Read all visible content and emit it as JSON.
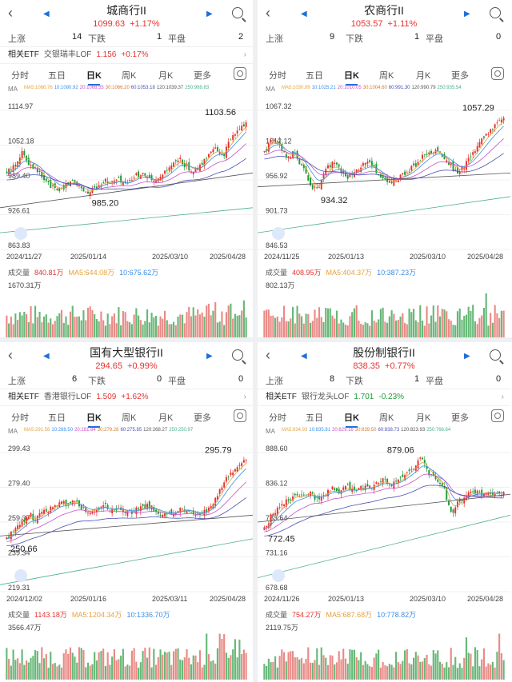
{
  "colors": {
    "up": "#e5332f",
    "down": "#1f9a3a",
    "blue": "#1f6fd8",
    "ma5": "#e6a23c",
    "ma10": "#3c8ee6",
    "ma20": "#c452c4",
    "ma30": "#d77a2c",
    "ma60": "#4a4fb5",
    "ma120": "#555555",
    "ma250": "#4caf88"
  },
  "tabs": [
    "分时",
    "五日",
    "日K",
    "周K",
    "月K",
    "更多"
  ],
  "labels": {
    "up": "上涨",
    "down": "下跌",
    "flat": "平盘",
    "etf": "相关ETF",
    "vol": "成交量",
    "ma": "MA"
  },
  "panels": [
    {
      "title": "城商行II",
      "price": "1099.63",
      "change": "+1.17%",
      "up": "14",
      "down": "1",
      "flat": "2",
      "etf_name": "交银瑞丰LOF",
      "etf_price": "1.156",
      "etf_change": "+0.17%",
      "etf_dir": "up",
      "ma": [
        [
          "MA5:1086.76",
          "ma5"
        ],
        [
          "10:1080.92",
          "ma10"
        ],
        [
          "20:1068.55",
          "ma20"
        ],
        [
          "30:1066.20",
          "ma30"
        ],
        [
          "60:1053.18",
          "ma60"
        ],
        [
          "120:1039.37",
          "ma120"
        ],
        [
          "250:969.83",
          "ma250"
        ]
      ],
      "yticks": [
        "1114.97",
        "1052.18",
        "989.40",
        "926.61",
        "863.83"
      ],
      "high": "1103.56",
      "low": "985.20",
      "dates": [
        "2024/11/27",
        "2025/01/14",
        "2025/03/10",
        "2025/04/28"
      ],
      "vol": "840.81万",
      "vol_ma5": "MA5:644.08万",
      "vol_ma10": "10:675.62万",
      "vol_max": "1670.31万",
      "series": {
        "start": 0.55,
        "path": [
          0.55,
          0.6,
          0.7,
          0.62,
          0.58,
          0.5,
          0.45,
          0.42,
          0.47,
          0.5,
          0.44,
          0.4,
          0.45,
          0.5,
          0.48,
          0.5,
          0.46,
          0.52,
          0.55,
          0.5,
          0.48,
          0.54,
          0.6,
          0.65,
          0.6,
          0.56,
          0.6,
          0.7,
          0.72,
          0.68,
          0.8,
          0.85,
          0.92
        ],
        "ma250": [
          0.12,
          0.3
        ],
        "ma120": [
          0.3,
          0.55
        ]
      }
    },
    {
      "title": "农商行II",
      "price": "1053.57",
      "change": "+1.11%",
      "up": "9",
      "down": "1",
      "flat": "0",
      "etf_name": "",
      "etf_price": "",
      "etf_change": "",
      "etf_dir": "up",
      "ma": [
        [
          "MA5:1030.99",
          "ma5"
        ],
        [
          "10:1025.21",
          "ma10"
        ],
        [
          "20:1010.05",
          "ma20"
        ],
        [
          "30:1004.60",
          "ma30"
        ],
        [
          "60:991.30",
          "ma60"
        ],
        [
          "120:990.79",
          "ma120"
        ],
        [
          "250:935.54",
          "ma250"
        ]
      ],
      "yticks": [
        "1067.32",
        "1012.12",
        "956.92",
        "901.73",
        "846.53"
      ],
      "high": "1057.29",
      "low": "934.32",
      "dates": [
        "2024/11/25",
        "2025/01/13",
        "2025/03/10",
        "2025/04/28"
      ],
      "vol": "408.95万",
      "vol_ma5": "MA5:404.37万",
      "vol_ma10": "10:387.23万",
      "vol_max": "802.13万",
      "series": {
        "start": 0.65,
        "path": [
          0.7,
          0.8,
          0.75,
          0.65,
          0.7,
          0.6,
          0.48,
          0.42,
          0.55,
          0.62,
          0.58,
          0.52,
          0.55,
          0.6,
          0.62,
          0.56,
          0.5,
          0.48,
          0.52,
          0.55,
          0.6,
          0.66,
          0.7,
          0.72,
          0.65,
          0.6,
          0.55,
          0.62,
          0.7,
          0.78,
          0.85,
          0.9,
          0.95
        ],
        "ma250": [
          0.12,
          0.38
        ],
        "ma120": [
          0.45,
          0.55
        ]
      }
    },
    {
      "title": "国有大型银行II",
      "price": "294.65",
      "change": "+0.99%",
      "up": "6",
      "down": "0",
      "flat": "0",
      "etf_name": "香港银行LOF",
      "etf_price": "1.509",
      "etf_change": "+1.62%",
      "etf_dir": "up",
      "ma": [
        [
          "MA5:291.58",
          "ma5"
        ],
        [
          "10:288.50",
          "ma10"
        ],
        [
          "20:281.84",
          "ma20"
        ],
        [
          "30:279.28",
          "ma30"
        ],
        [
          "60:275.85",
          "ma60"
        ],
        [
          "120:268.27",
          "ma120"
        ],
        [
          "250:250.97",
          "ma250"
        ]
      ],
      "yticks": [
        "299.43",
        "279.40",
        "259.37",
        "239.34",
        "219.31"
      ],
      "high": "295.79",
      "low": "250.66",
      "dates": [
        "2024/12/02",
        "2025/01/16",
        "2025/03/11",
        "2025/04/28"
      ],
      "vol": "1143.18万",
      "vol_ma5": "MA5:1204.34万",
      "vol_ma10": "10:1336.70万",
      "vol_max": "3566.47万",
      "series": {
        "start": 0.38,
        "path": [
          0.38,
          0.45,
          0.5,
          0.55,
          0.52,
          0.58,
          0.6,
          0.65,
          0.62,
          0.66,
          0.6,
          0.56,
          0.6,
          0.62,
          0.58,
          0.6,
          0.57,
          0.58,
          0.6,
          0.62,
          0.58,
          0.55,
          0.56,
          0.58,
          0.6,
          0.56,
          0.55,
          0.6,
          0.68,
          0.78,
          0.85,
          0.9,
          0.95
        ],
        "ma250": [
          0.05,
          0.38
        ],
        "ma120": [
          0.4,
          0.55
        ]
      }
    },
    {
      "title": "股份制银行II",
      "price": "838.35",
      "change": "+0.77%",
      "up": "8",
      "down": "1",
      "flat": "0",
      "etf_name": "银行龙头LOF",
      "etf_price": "1.701",
      "etf_change": "-0.23%",
      "etf_dir": "down",
      "ma": [
        [
          "MA5:834.93",
          "ma5"
        ],
        [
          "10:835.81",
          "ma10"
        ],
        [
          "20:829.16",
          "ma20"
        ],
        [
          "30:839.50",
          "ma30"
        ],
        [
          "60:838.73",
          "ma60"
        ],
        [
          "120:823.93",
          "ma120"
        ],
        [
          "250:768.64",
          "ma250"
        ]
      ],
      "yticks": [
        "888.60",
        "836.12",
        "783.64",
        "731.16",
        "678.68"
      ],
      "high": "879.06",
      "low": "772.45",
      "dates": [
        "2024/11/26",
        "2025/01/13",
        "2025/03/10",
        "2025/04/28"
      ],
      "vol": "754.27万",
      "vol_ma5": "MA5:687.68万",
      "vol_ma10": "10:778.82万",
      "vol_max": "2119.75万",
      "series": {
        "start": 0.45,
        "path": [
          0.45,
          0.55,
          0.6,
          0.65,
          0.7,
          0.68,
          0.72,
          0.66,
          0.7,
          0.74,
          0.7,
          0.76,
          0.72,
          0.75,
          0.74,
          0.78,
          0.8,
          0.76,
          0.8,
          0.85,
          0.9,
          0.96,
          0.85,
          0.8,
          0.75,
          0.55,
          0.65,
          0.7,
          0.72,
          0.7,
          0.72,
          0.7,
          0.72
        ],
        "ma250": [
          0.1,
          0.55
        ],
        "ma120": [
          0.5,
          0.7
        ]
      }
    }
  ]
}
